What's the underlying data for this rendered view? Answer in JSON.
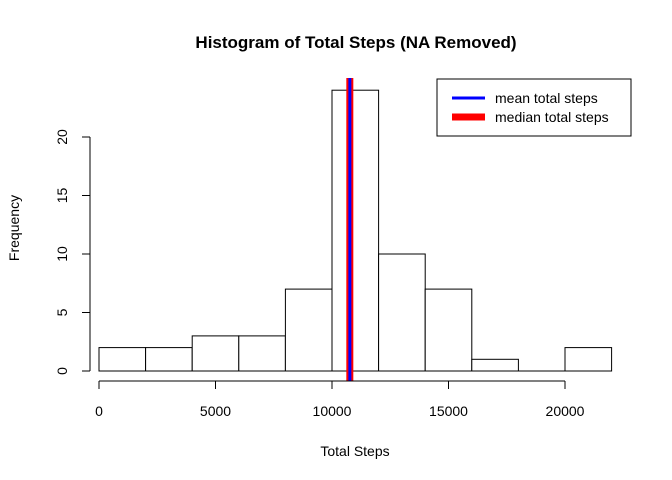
{
  "chart_data": {
    "type": "bar",
    "title": "Histogram of Total Steps (NA Removed)",
    "xlabel": "Total Steps",
    "ylabel": "Frequency",
    "bins": [
      {
        "from": 0,
        "to": 2000,
        "count": 2
      },
      {
        "from": 2000,
        "to": 4000,
        "count": 2
      },
      {
        "from": 4000,
        "to": 6000,
        "count": 3
      },
      {
        "from": 6000,
        "to": 8000,
        "count": 3
      },
      {
        "from": 8000,
        "to": 10000,
        "count": 7
      },
      {
        "from": 10000,
        "to": 12000,
        "count": 24
      },
      {
        "from": 12000,
        "to": 14000,
        "count": 10
      },
      {
        "from": 14000,
        "to": 16000,
        "count": 7
      },
      {
        "from": 16000,
        "to": 18000,
        "count": 1
      },
      {
        "from": 18000,
        "to": 20000,
        "count": 0
      },
      {
        "from": 20000,
        "to": 22000,
        "count": 2
      }
    ],
    "xlim": [
      0,
      22000
    ],
    "ylim": [
      0,
      24
    ],
    "x_ticks": [
      0,
      5000,
      10000,
      15000,
      20000
    ],
    "y_ticks": [
      0,
      5,
      10,
      15,
      20
    ],
    "grid": false,
    "bar_fill": "#ffffff",
    "bar_stroke": "#000000",
    "vlines": [
      {
        "name": "median total steps",
        "value": 10765,
        "color": "#ff0000"
      },
      {
        "name": "mean total steps",
        "value": 10766.19,
        "color": "#0000ff"
      }
    ],
    "legend": {
      "position": "top-right",
      "entries": [
        {
          "label": "mean total steps",
          "color": "#0000ff"
        },
        {
          "label": "median total steps",
          "color": "#ff0000"
        }
      ]
    }
  }
}
